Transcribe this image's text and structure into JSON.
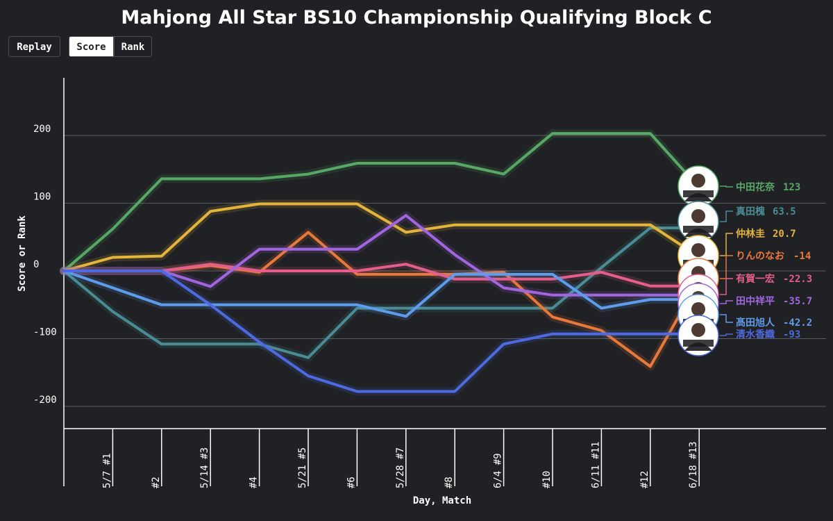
{
  "title": "Mahjong All Star BS10 Championship Qualifying Block C",
  "controls": {
    "replay_label": "Replay",
    "score_label": "Score",
    "rank_label": "Rank",
    "active": "Score"
  },
  "chart_data": {
    "type": "line",
    "title": "Mahjong All Star BS10 Championship Qualifying Block C",
    "xlabel": "Day, Match",
    "ylabel": "Score or Rank",
    "x_ticks": [
      "5/7 #1",
      "#2",
      "5/14 #3",
      "#4",
      "5/21 #5",
      "#6",
      "5/28 #7",
      "#8",
      "6/4 #9",
      "#10",
      "6/11 #11",
      "#12",
      "6/18 #13"
    ],
    "y_ticks": [
      200,
      100,
      0,
      -100,
      -200
    ],
    "ylim": [
      -235,
      285
    ],
    "grid": true,
    "legend_placement": "right-end",
    "series": [
      {
        "name": "中田花奈",
        "final": "123",
        "color": "#57a866",
        "values": [
          0,
          62,
          136,
          136,
          136,
          143,
          159,
          159,
          159,
          143,
          203,
          203,
          203,
          123
        ]
      },
      {
        "name": "真田槐",
        "final": "63.5",
        "color": "#4a8c93",
        "values": [
          0,
          -60,
          -108,
          -108,
          -108,
          -128,
          -55,
          -55,
          -55,
          -55,
          -55,
          5,
          63.5,
          63.5
        ]
      },
      {
        "name": "仲林圭",
        "final": "20.7",
        "color": "#e5b43c",
        "values": [
          0,
          20,
          22,
          88,
          99,
          99,
          99,
          57,
          68,
          68,
          68,
          68,
          68,
          20.7
        ]
      },
      {
        "name": "りんのなお",
        "final": "-14",
        "color": "#e9793a",
        "values": [
          0,
          0,
          0,
          8,
          -2,
          57,
          -5,
          -5,
          -5,
          -2,
          -68,
          -88,
          -141,
          -14
        ]
      },
      {
        "name": "有賀一宏",
        "final": "-22.3",
        "color": "#e45e8b",
        "values": [
          0,
          0,
          0,
          10,
          0,
          0,
          0,
          10,
          -12,
          -12,
          -12,
          -2,
          -22.3,
          -22.3
        ]
      },
      {
        "name": "田中祥平",
        "final": "-35.7",
        "color": "#a166df",
        "values": [
          0,
          0,
          0,
          -23,
          32,
          32,
          32,
          82,
          24,
          -25,
          -35.7,
          -35.7,
          -35.7,
          -35.7
        ]
      },
      {
        "name": "髙田旭人",
        "final": "-42.2",
        "color": "#5e9cec",
        "values": [
          0,
          -25,
          -50,
          -50,
          -50,
          -50,
          -50,
          -67,
          -5,
          -5,
          -5,
          -55,
          -42.2,
          -42.2
        ]
      },
      {
        "name": "清水香織",
        "final": "-93",
        "color": "#4d6ae0",
        "values": [
          0,
          0,
          0,
          -50,
          -105,
          -155,
          -178,
          -178,
          -178,
          -108,
          -93,
          -93,
          -93,
          -93
        ]
      }
    ]
  }
}
